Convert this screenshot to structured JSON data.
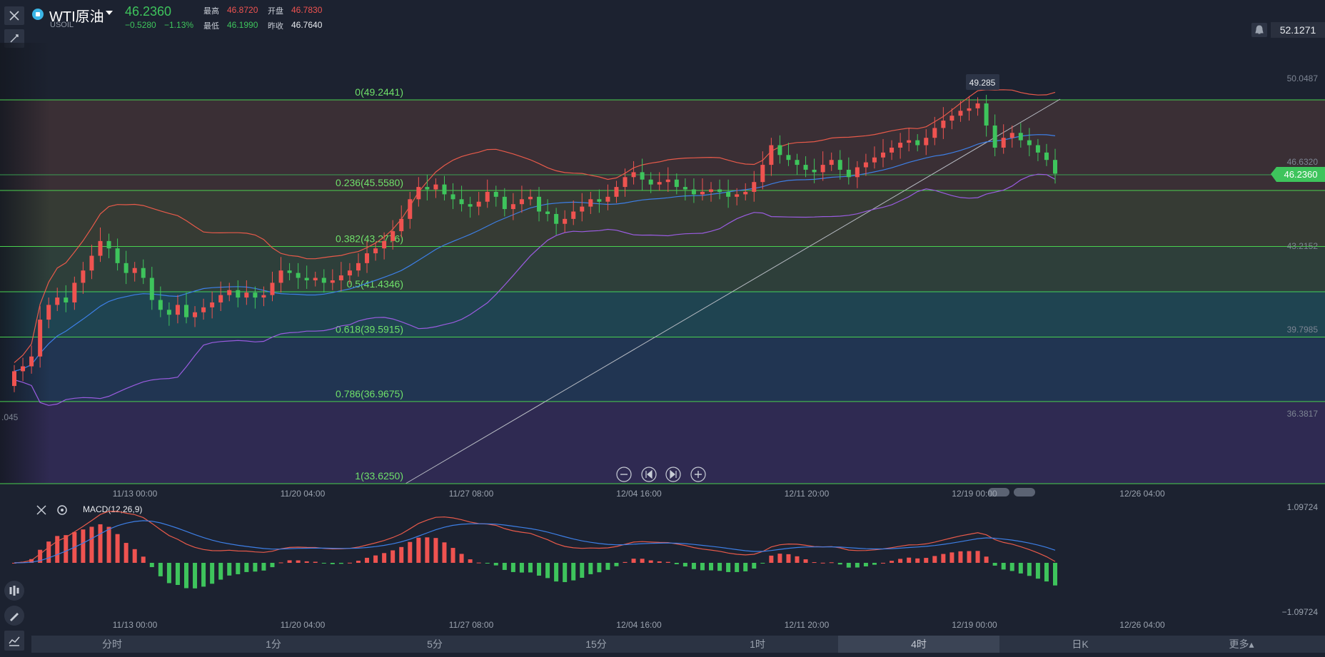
{
  "header": {
    "symbol": "WTI原油",
    "code": "USOIL",
    "price": "46.2360",
    "change": "−0.5280",
    "change_pct": "−1.13%",
    "high_label": "最高",
    "high": "46.8720",
    "open_label": "开盘",
    "open": "46.7830",
    "low_label": "最低",
    "low": "46.1990",
    "prev_label": "昨收",
    "prev_close": "46.7640",
    "top_price": "52.1271"
  },
  "colors": {
    "up": "#ef5350",
    "down": "#3ec45c",
    "fib_line": "#49d14e",
    "mid_band": "#3d7fe6",
    "outer_band": "#9a5ce0"
  },
  "tabs": [
    {
      "label": "分时"
    },
    {
      "label": "1分"
    },
    {
      "label": "5分"
    },
    {
      "label": "15分"
    },
    {
      "label": "1时"
    },
    {
      "label": "4时",
      "active": true
    },
    {
      "label": "日K"
    },
    {
      "label": "更多▴"
    }
  ],
  "nav_icons": [
    "zoom-out-icon",
    "step-back-icon",
    "step-forward-icon",
    "zoom-in-icon"
  ],
  "chart_data": [
    {
      "type": "candlestick",
      "title": "WTI原油 4时",
      "y_axis_labels": [
        "50.0487",
        "46.6320",
        "43.2152",
        "39.7985",
        "36.3817"
      ],
      "left_partial_label": ".045",
      "x_tick_labels": [
        "11/13 00:00",
        "11/20 04:00",
        "11/27 08:00",
        "12/04 16:00",
        "12/11 20:00",
        "12/19 00:00",
        "12/26 04:00"
      ],
      "last_price": "46.2360",
      "high_marker": "49.285",
      "fib_levels": [
        {
          "ratio": "0",
          "value": 49.2441,
          "label": "0(49.2441)"
        },
        {
          "ratio": "0.236",
          "value": 45.558,
          "label": "0.236(45.5580)"
        },
        {
          "ratio": "0.382",
          "value": 43.2776,
          "label": "0.382(43.2776)"
        },
        {
          "ratio": "0.5",
          "value": 41.4346,
          "label": "0.5(41.4346)"
        },
        {
          "ratio": "0.618",
          "value": 39.5915,
          "label": "0.618(39.5915)"
        },
        {
          "ratio": "0.786",
          "value": 36.9675,
          "label": "0.786(36.9675)"
        },
        {
          "ratio": "1",
          "value": 33.625,
          "label": "1(33.6250)"
        }
      ],
      "close_series": [
        38.2,
        38.4,
        38.8,
        40.3,
        40.9,
        41.2,
        41.0,
        41.8,
        42.3,
        42.9,
        43.5,
        43.2,
        42.6,
        42.2,
        42.4,
        42.0,
        41.1,
        40.7,
        40.5,
        40.9,
        40.4,
        40.6,
        40.8,
        41.0,
        41.3,
        41.5,
        41.2,
        41.4,
        41.2,
        41.3,
        41.8,
        42.3,
        42.2,
        42.0,
        41.9,
        42.0,
        41.8,
        41.9,
        42.1,
        42.3,
        42.6,
        43.0,
        43.2,
        43.5,
        43.9,
        44.4,
        45.2,
        45.7,
        45.6,
        45.8,
        45.4,
        45.2,
        45.0,
        44.9,
        45.1,
        45.5,
        45.3,
        44.8,
        45.0,
        45.2,
        45.3,
        44.7,
        44.6,
        44.2,
        44.4,
        44.7,
        44.9,
        45.2,
        45.1,
        45.3,
        45.7,
        46.1,
        46.3,
        46.0,
        45.8,
        45.9,
        46.0,
        45.7,
        45.6,
        45.4,
        45.5,
        45.6,
        45.5,
        45.3,
        45.4,
        45.5,
        45.9,
        46.6,
        47.4,
        47.0,
        46.8,
        46.6,
        46.4,
        46.3,
        46.6,
        46.8,
        46.4,
        46.1,
        46.5,
        46.7,
        46.9,
        47.1,
        47.3,
        47.5,
        47.6,
        47.4,
        47.7,
        48.1,
        48.4,
        48.6,
        48.8,
        48.9,
        49.1,
        48.2,
        47.3,
        47.7,
        47.9,
        47.6,
        47.4,
        47.1,
        46.8,
        46.24
      ],
      "bollinger": "20,2"
    },
    {
      "type": "bar+line",
      "title": "MACD(12,26,9)",
      "y_axis_labels": [
        "1.09724",
        "−1.09724"
      ],
      "x_tick_labels": [
        "11/13 00:00",
        "11/20 04:00",
        "11/27 08:00",
        "12/04 16:00",
        "12/11 20:00",
        "12/19 00:00",
        "12/26 04:00"
      ],
      "ylim": [
        -1.09724,
        1.09724
      ]
    }
  ]
}
